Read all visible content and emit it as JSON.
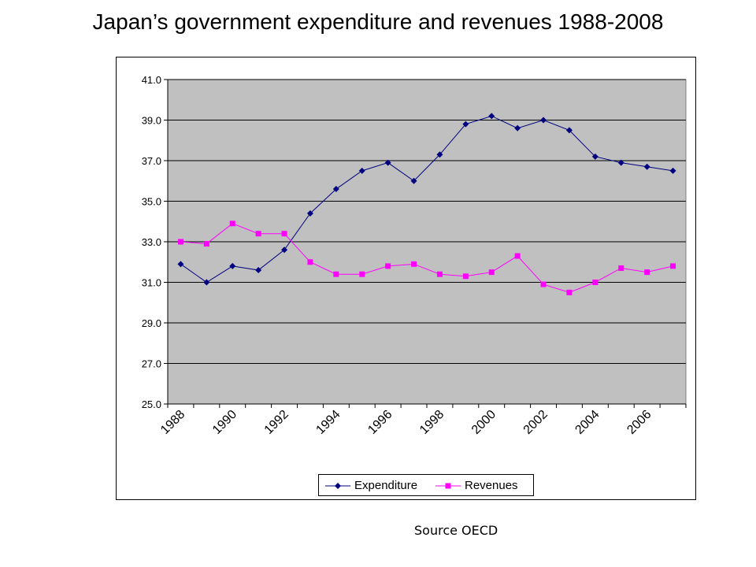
{
  "title": "Japan’s government expenditure and revenues 1988-2008",
  "source": "Source OECD",
  "colors": {
    "plot_background": "#c0c0c0",
    "expenditure": "#000080",
    "revenues": "#ff00ff"
  },
  "chart_data": {
    "type": "line",
    "title": "",
    "xlabel": "",
    "ylabel": "",
    "x": [
      1988,
      1989,
      1990,
      1991,
      1992,
      1993,
      1994,
      1995,
      1996,
      1997,
      1998,
      1999,
      2000,
      2001,
      2002,
      2003,
      2004,
      2005,
      2006,
      2007
    ],
    "x_tick_labels": [
      "1988",
      "1990",
      "1992",
      "1994",
      "1996",
      "1998",
      "2000",
      "2002",
      "2004",
      "2006"
    ],
    "y_tick_labels": [
      "25.0",
      "27.0",
      "29.0",
      "31.0",
      "33.0",
      "35.0",
      "37.0",
      "39.0",
      "41.0"
    ],
    "ylim": [
      25,
      41
    ],
    "grid": "horizontal",
    "legend_position": "bottom",
    "series": [
      {
        "name": "Expenditure",
        "marker": "diamond",
        "color": "#000080",
        "values": [
          31.9,
          31.0,
          31.8,
          31.6,
          32.6,
          34.4,
          35.6,
          36.5,
          36.9,
          36.0,
          37.3,
          38.8,
          39.2,
          38.6,
          39.0,
          38.5,
          37.2,
          36.9,
          36.7,
          36.5
        ]
      },
      {
        "name": "Revenues",
        "marker": "square",
        "color": "#ff00ff",
        "values": [
          33.0,
          32.9,
          33.9,
          33.4,
          33.4,
          32.0,
          31.4,
          31.4,
          31.8,
          31.9,
          31.4,
          31.3,
          31.5,
          32.3,
          30.9,
          30.5,
          31.0,
          31.7,
          31.5,
          31.8
        ]
      }
    ]
  }
}
